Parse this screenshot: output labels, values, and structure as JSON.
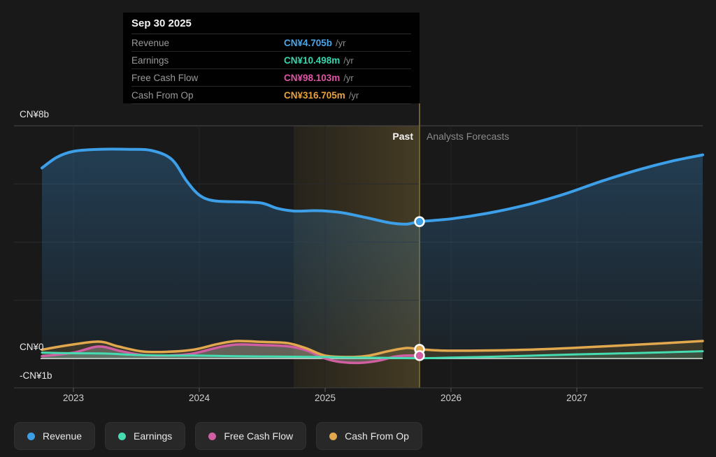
{
  "colors": {
    "background": "#191919",
    "revenue": "#3d9fe8",
    "earnings": "#46dcb2",
    "free_cash_flow": "#d05fa2",
    "cash_from_op": "#e2a84e",
    "tooltip_revenue": "#4aa7ec",
    "tooltip_earnings": "#38d6ae",
    "tooltip_free_cash_flow": "#e055a5",
    "tooltip_cash_from_op": "#eca23d",
    "band_start": "rgba(186,148,58,0.08)",
    "band_end": "rgba(196,160,70,0.26)",
    "divider": "#6e5f35",
    "zero_line": "#d2d2d2",
    "gridline": "#2a2a2a",
    "gridline_top": "#4a4a4a",
    "axis_line": "#3f3f3f",
    "tick": "#5a5a5a",
    "revenue_fill_top": "rgba(56,145,215,0.30)",
    "revenue_fill_bottom": "rgba(56,145,215,0.07)",
    "earnings_fill": "rgba(70,220,178,0.16)",
    "free_cash_flow_fill": "rgba(200,200,200,0.30)",
    "cash_from_op_fill": "rgba(170,128,48,0.22)"
  },
  "tooltip": {
    "date": "Sep 30 2025",
    "rows": [
      {
        "label": "Revenue",
        "value": "CN¥4.705b",
        "suffix": "/yr",
        "series": "revenue"
      },
      {
        "label": "Earnings",
        "value": "CN¥10.498m",
        "suffix": "/yr",
        "series": "earnings"
      },
      {
        "label": "Free Cash Flow",
        "value": "CN¥98.103m",
        "suffix": "/yr",
        "series": "free_cash_flow"
      },
      {
        "label": "Cash From Op",
        "value": "CN¥316.705m",
        "suffix": "/yr",
        "series": "cash_from_op"
      }
    ]
  },
  "axis": {
    "y_labels": [
      {
        "text": "CN¥8b",
        "value": 8
      },
      {
        "text": "CN¥0",
        "value": 0
      },
      {
        "text": "-CN¥1b",
        "value": -1
      }
    ],
    "x_ticks": [
      2023,
      2024,
      2025,
      2026,
      2027
    ]
  },
  "annotations": {
    "past": "Past",
    "forecast": "Analysts Forecasts"
  },
  "legend": [
    {
      "label": "Revenue",
      "series": "revenue"
    },
    {
      "label": "Earnings",
      "series": "earnings"
    },
    {
      "label": "Free Cash Flow",
      "series": "free_cash_flow"
    },
    {
      "label": "Cash From Op",
      "series": "cash_from_op"
    }
  ],
  "chart_data": {
    "type": "line",
    "unit": "CN¥ billions per year",
    "x_domain": [
      2022.75,
      2028.0
    ],
    "y_domain": [
      -1,
      8
    ],
    "divider_x": 2025.75,
    "divider_date": "Sep 30 2025",
    "highlight_band": [
      2024.75,
      2025.75
    ],
    "series": [
      {
        "name": "revenue",
        "color_key": "revenue",
        "width": 4,
        "past": [
          [
            2022.75,
            6.55
          ],
          [
            2022.87,
            6.92
          ],
          [
            2023.0,
            7.12
          ],
          [
            2023.2,
            7.19
          ],
          [
            2023.45,
            7.19
          ],
          [
            2023.62,
            7.15
          ],
          [
            2023.78,
            6.85
          ],
          [
            2023.9,
            6.1
          ],
          [
            2024.0,
            5.62
          ],
          [
            2024.12,
            5.42
          ],
          [
            2024.35,
            5.38
          ],
          [
            2024.5,
            5.34
          ],
          [
            2024.62,
            5.16
          ],
          [
            2024.75,
            5.07
          ],
          [
            2024.9,
            5.08
          ],
          [
            2025.0,
            5.07
          ],
          [
            2025.15,
            5.0
          ],
          [
            2025.35,
            4.82
          ],
          [
            2025.52,
            4.66
          ],
          [
            2025.65,
            4.62
          ],
          [
            2025.75,
            4.705
          ]
        ],
        "forecast": [
          [
            2026.0,
            4.8
          ],
          [
            2026.3,
            5.0
          ],
          [
            2026.6,
            5.28
          ],
          [
            2026.9,
            5.65
          ],
          [
            2027.2,
            6.1
          ],
          [
            2027.5,
            6.5
          ],
          [
            2027.75,
            6.78
          ],
          [
            2028.0,
            7.0
          ]
        ]
      },
      {
        "name": "cash_from_op",
        "color_key": "cash_from_op",
        "width": 3.5,
        "past": [
          [
            2022.75,
            0.3
          ],
          [
            2022.95,
            0.45
          ],
          [
            2023.2,
            0.58
          ],
          [
            2023.35,
            0.42
          ],
          [
            2023.55,
            0.24
          ],
          [
            2023.75,
            0.23
          ],
          [
            2023.95,
            0.3
          ],
          [
            2024.15,
            0.5
          ],
          [
            2024.3,
            0.6
          ],
          [
            2024.5,
            0.57
          ],
          [
            2024.7,
            0.53
          ],
          [
            2024.85,
            0.35
          ],
          [
            2025.0,
            0.1
          ],
          [
            2025.2,
            0.05
          ],
          [
            2025.35,
            0.1
          ],
          [
            2025.5,
            0.25
          ],
          [
            2025.65,
            0.36
          ],
          [
            2025.75,
            0.3167
          ]
        ],
        "forecast": [
          [
            2025.95,
            0.27
          ],
          [
            2026.2,
            0.27
          ],
          [
            2026.6,
            0.3
          ],
          [
            2027.0,
            0.37
          ],
          [
            2027.5,
            0.48
          ],
          [
            2028.0,
            0.6
          ]
        ]
      },
      {
        "name": "free_cash_flow",
        "color_key": "free_cash_flow",
        "width": 3.5,
        "past": [
          [
            2022.75,
            0.08
          ],
          [
            2023.0,
            0.2
          ],
          [
            2023.2,
            0.41
          ],
          [
            2023.38,
            0.25
          ],
          [
            2023.55,
            0.12
          ],
          [
            2023.75,
            0.1
          ],
          [
            2023.95,
            0.17
          ],
          [
            2024.15,
            0.38
          ],
          [
            2024.3,
            0.48
          ],
          [
            2024.5,
            0.46
          ],
          [
            2024.7,
            0.42
          ],
          [
            2024.85,
            0.28
          ],
          [
            2025.0,
            0.0
          ],
          [
            2025.12,
            -0.12
          ],
          [
            2025.28,
            -0.15
          ],
          [
            2025.42,
            -0.08
          ],
          [
            2025.55,
            0.06
          ],
          [
            2025.65,
            0.1
          ],
          [
            2025.75,
            0.098
          ]
        ],
        "forecast": []
      },
      {
        "name": "earnings",
        "color_key": "earnings",
        "width": 3,
        "past": [
          [
            2022.75,
            0.2
          ],
          [
            2023.0,
            0.18
          ],
          [
            2023.25,
            0.17
          ],
          [
            2023.5,
            0.12
          ],
          [
            2023.75,
            0.1
          ],
          [
            2024.0,
            0.1
          ],
          [
            2024.25,
            0.08
          ],
          [
            2024.5,
            0.07
          ],
          [
            2024.75,
            0.06
          ],
          [
            2025.0,
            0.05
          ],
          [
            2025.25,
            0.03
          ],
          [
            2025.5,
            0.02
          ],
          [
            2025.75,
            0.0105
          ]
        ],
        "forecast": [
          [
            2026.0,
            0.03
          ],
          [
            2026.5,
            0.08
          ],
          [
            2027.0,
            0.14
          ],
          [
            2027.5,
            0.19
          ],
          [
            2028.0,
            0.25
          ]
        ]
      }
    ],
    "markers": [
      {
        "series": "revenue",
        "value": 4.705
      },
      {
        "series": "cash_from_op",
        "value": 0.3167
      },
      {
        "series": "free_cash_flow",
        "value": 0.098103
      }
    ]
  }
}
